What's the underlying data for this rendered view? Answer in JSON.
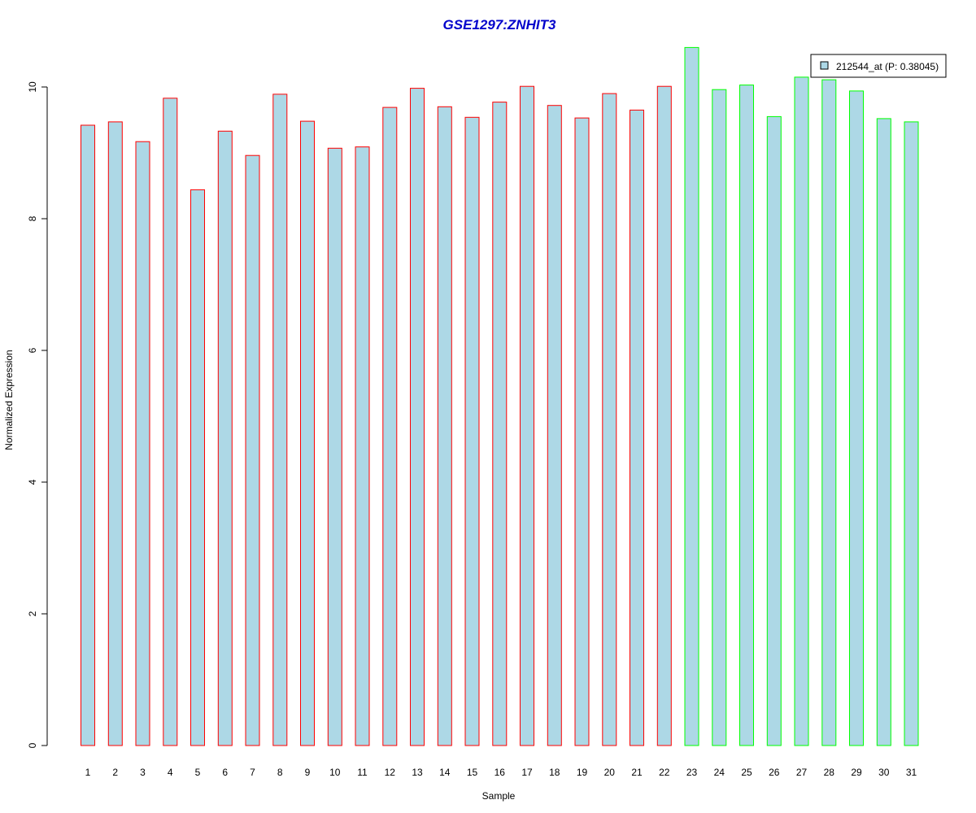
{
  "chart_data": {
    "type": "bar",
    "title": "GSE1297:ZNHIT3",
    "xlabel": "Sample",
    "ylabel": "Normalized Expression",
    "ylim": [
      0,
      10.6
    ],
    "yticks": [
      0,
      2,
      4,
      6,
      8,
      10
    ],
    "categories": [
      "1",
      "2",
      "3",
      "4",
      "5",
      "6",
      "7",
      "8",
      "9",
      "10",
      "11",
      "12",
      "13",
      "14",
      "15",
      "16",
      "17",
      "18",
      "19",
      "20",
      "21",
      "22",
      "23",
      "24",
      "25",
      "26",
      "27",
      "28",
      "29",
      "30",
      "31"
    ],
    "values": [
      9.42,
      9.47,
      9.17,
      9.83,
      8.44,
      9.33,
      8.96,
      9.89,
      9.48,
      9.07,
      9.09,
      9.69,
      9.98,
      9.7,
      9.54,
      9.77,
      10.01,
      9.72,
      9.53,
      9.9,
      9.65,
      10.01,
      10.6,
      9.96,
      10.03,
      9.55,
      10.15,
      10.11,
      9.94,
      9.52,
      9.47
    ],
    "bar_fill": "#ADD8E6",
    "bar_outline": [
      "#FF0000",
      "#FF0000",
      "#FF0000",
      "#FF0000",
      "#FF0000",
      "#FF0000",
      "#FF0000",
      "#FF0000",
      "#FF0000",
      "#FF0000",
      "#FF0000",
      "#FF0000",
      "#FF0000",
      "#FF0000",
      "#FF0000",
      "#FF0000",
      "#FF0000",
      "#FF0000",
      "#FF0000",
      "#FF0000",
      "#FF0000",
      "#FF0000",
      "#00FF00",
      "#00FF00",
      "#00FF00",
      "#00FF00",
      "#00FF00",
      "#00FF00",
      "#00FF00",
      "#00FF00",
      "#00FF00"
    ],
    "title_color": "#0000CC",
    "legend": {
      "position": "top-right",
      "entries": [
        {
          "label": "212544_at (P: 0.38045)",
          "color": "#ADD8E6"
        }
      ]
    },
    "grid": false
  }
}
